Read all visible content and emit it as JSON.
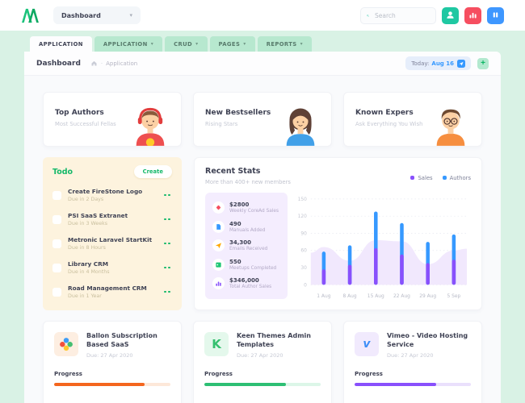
{
  "header": {
    "nav_dropdown_label": "Dashboard",
    "search_placeholder": "Search",
    "action_buttons": [
      {
        "id": "user",
        "icon": "user-icon",
        "color": "#1fc8a2"
      },
      {
        "id": "stats",
        "icon": "bar-chart-icon",
        "color": "#f64e60"
      },
      {
        "id": "panels",
        "icon": "pause-icon",
        "color": "#3e97ff"
      }
    ]
  },
  "tabs": [
    {
      "label": "APPLICATION",
      "active": true,
      "caret": false
    },
    {
      "label": "APPLICATION",
      "active": false,
      "caret": true
    },
    {
      "label": "CRUD",
      "active": false,
      "caret": true
    },
    {
      "label": "PAGES",
      "active": false,
      "caret": true
    },
    {
      "label": "REPORTS",
      "active": false,
      "caret": true
    }
  ],
  "toolbar": {
    "page_title": "Dashboard",
    "breadcrumb_sep": "·",
    "breadcrumb": "Application",
    "today_label": "Today:",
    "today_value": "Aug 16",
    "add_label": "+"
  },
  "feature_cards": [
    {
      "id": "top-authors",
      "title": "Top Authors",
      "subtitle": "Most Successful Fellas",
      "avatar": "boy-headphones"
    },
    {
      "id": "new-bestsellers",
      "title": "New Bestsellers",
      "subtitle": "Rising Stars",
      "avatar": "girl"
    },
    {
      "id": "known-expers",
      "title": "Known Expers",
      "subtitle": "Ask Everything You Wish",
      "avatar": "boy-glasses"
    }
  ],
  "todo": {
    "title": "Todo",
    "create_label": "Create",
    "items": [
      {
        "title": "Create FireStone Logo",
        "due": "Due in 2 Days"
      },
      {
        "title": "PSI SaaS Extranet",
        "due": "Due in 3 Weeks"
      },
      {
        "title": "Metronic Laravel StartKit",
        "due": "Due in 8 Hours"
      },
      {
        "title": "Library CRM",
        "due": "Due in 4 Months"
      },
      {
        "title": "Road Management CRM",
        "due": "Due in 1 Year"
      }
    ]
  },
  "stats": {
    "title": "Recent Stats",
    "subtitle": "More than 400+ new members",
    "metrics": [
      {
        "value": "$2800",
        "label": "Weekly CoreAd Sales",
        "icon": "tag",
        "color": "#f64e60"
      },
      {
        "value": "490",
        "label": "Manuals Added",
        "icon": "file",
        "color": "#3699ff"
      },
      {
        "value": "34,300",
        "label": "Emails Received",
        "icon": "send",
        "color": "#ffa800"
      },
      {
        "value": "550",
        "label": "Meetups Completed",
        "icon": "calendar",
        "color": "#1bc573"
      },
      {
        "value": "$346,000",
        "label": "Total Author Sales",
        "icon": "chart",
        "color": "#8950fc"
      }
    ]
  },
  "chart_data": {
    "type": "bar",
    "stacked": true,
    "title": "Recent Stats",
    "subtitle": "More than 400+ new members",
    "categories": [
      "1 Aug",
      "8 Aug",
      "15 Aug",
      "22 Aug",
      "29 Aug",
      "5 Sep"
    ],
    "series": [
      {
        "name": "Sales",
        "color": "#8950fc",
        "values": [
          27,
          35,
          64,
          53,
          38,
          44
        ]
      },
      {
        "name": "Authors",
        "color": "#3699ff",
        "values": [
          31,
          34,
          64,
          55,
          37,
          44
        ]
      }
    ],
    "background_area": {
      "color": "#f1e8fd",
      "values": [
        66,
        42,
        78,
        76,
        36,
        60
      ]
    },
    "ylim": [
      0,
      150
    ],
    "yticks": [
      0,
      30,
      60,
      90,
      120,
      150
    ],
    "grid": "dashed-horizontal",
    "legend_position": "top-right"
  },
  "projects": [
    {
      "title": "Ballon Subscription Based SaaS",
      "due": "Due: 27 Apr 2020",
      "icon": "flower",
      "tile_bg": "#fdeee1",
      "progress_label": "Progress",
      "progress": 78,
      "bar_color": "#f4661e",
      "track_color": "#fde8d9"
    },
    {
      "title": "Keen Themes Admin Templates",
      "due": "Due: 27 Apr 2020",
      "icon": "keen",
      "tile_bg": "#e4f8ec",
      "progress_label": "Progress",
      "progress": 70,
      "bar_color": "#2dbf74",
      "track_color": "#dcf6e8"
    },
    {
      "title": "Vimeo - Video Hosting Service",
      "due": "Due: 27 Apr 2020",
      "icon": "vimeo",
      "tile_bg": "#f1eafd",
      "progress_label": "Progress",
      "progress": 70,
      "bar_color": "#8950fc",
      "track_color": "#eae0fc"
    }
  ]
}
